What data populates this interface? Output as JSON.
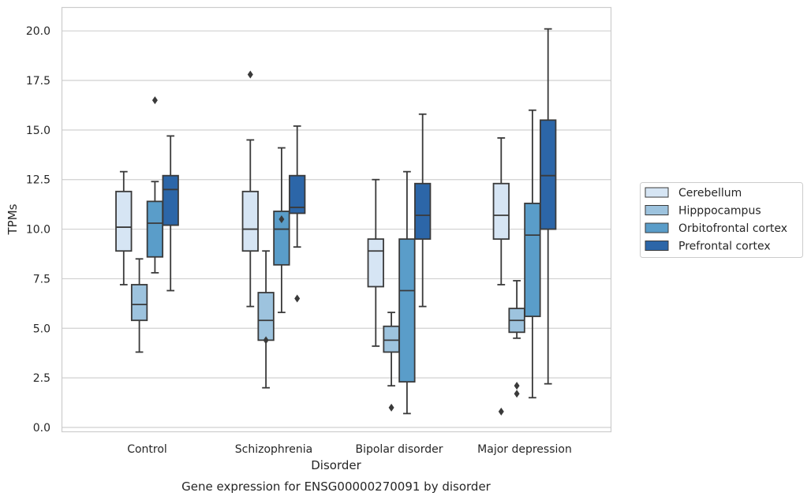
{
  "chart_data": {
    "type": "box",
    "title": "",
    "caption": "Gene expression for ENSG00000270091 by disorder",
    "xlabel": "Disorder",
    "ylabel": "TPMs",
    "ylim": [
      -0.2,
      21.2
    ],
    "yticks": [
      "0.0",
      "2.5",
      "5.0",
      "7.5",
      "10.0",
      "12.5",
      "15.0",
      "17.5",
      "20.0"
    ],
    "grid": "horizontal",
    "legend_position": "right",
    "categories": [
      "Control",
      "Schizophrenia",
      "Bipolar disorder",
      "Major depression"
    ],
    "series": [
      {
        "name": "Cerebellum",
        "color": "#d6e5f4",
        "boxes": [
          {
            "whislo": 7.2,
            "q1": 8.9,
            "med": 10.1,
            "q3": 11.9,
            "whishi": 12.9,
            "fliers": []
          },
          {
            "whislo": 6.1,
            "q1": 8.9,
            "med": 10.0,
            "q3": 11.9,
            "whishi": 14.5,
            "fliers": [
              17.8
            ]
          },
          {
            "whislo": 4.1,
            "q1": 7.1,
            "med": 8.9,
            "q3": 9.5,
            "whishi": 12.5,
            "fliers": []
          },
          {
            "whislo": 7.2,
            "q1": 9.5,
            "med": 10.7,
            "q3": 12.3,
            "whishi": 14.6,
            "fliers": [
              0.8
            ]
          }
        ]
      },
      {
        "name": "Hipppocampus",
        "color": "#9dc3de",
        "boxes": [
          {
            "whislo": 3.8,
            "q1": 5.4,
            "med": 6.2,
            "q3": 7.2,
            "whishi": 8.5,
            "fliers": []
          },
          {
            "whislo": 2.0,
            "q1": 4.4,
            "med": 5.4,
            "q3": 6.8,
            "whishi": 8.9,
            "fliers": [
              4.4
            ]
          },
          {
            "whislo": 2.1,
            "q1": 3.8,
            "med": 4.4,
            "q3": 5.1,
            "whishi": 5.8,
            "fliers": [
              1.0
            ]
          },
          {
            "whislo": 4.5,
            "q1": 4.8,
            "med": 5.4,
            "q3": 6.0,
            "whishi": 7.4,
            "fliers": [
              1.7,
              2.1
            ]
          }
        ]
      },
      {
        "name": "Orbitofrontal cortex",
        "color": "#5a9dc9",
        "boxes": [
          {
            "whislo": 7.8,
            "q1": 8.6,
            "med": 10.3,
            "q3": 11.4,
            "whishi": 12.4,
            "fliers": [
              16.5
            ]
          },
          {
            "whislo": 5.8,
            "q1": 8.2,
            "med": 10.0,
            "q3": 10.9,
            "whishi": 14.1,
            "fliers": [
              10.5
            ]
          },
          {
            "whislo": 0.7,
            "q1": 2.3,
            "med": 6.9,
            "q3": 9.5,
            "whishi": 12.9,
            "fliers": []
          },
          {
            "whislo": 1.5,
            "q1": 5.6,
            "med": 9.7,
            "q3": 11.3,
            "whishi": 16.0,
            "fliers": []
          }
        ]
      },
      {
        "name": "Prefrontal cortex",
        "color": "#2c66a8",
        "boxes": [
          {
            "whislo": 6.9,
            "q1": 10.2,
            "med": 12.0,
            "q3": 12.7,
            "whishi": 14.7,
            "fliers": []
          },
          {
            "whislo": 9.1,
            "q1": 10.8,
            "med": 11.1,
            "q3": 12.7,
            "whishi": 15.2,
            "fliers": [
              6.5
            ]
          },
          {
            "whislo": 6.1,
            "q1": 9.5,
            "med": 10.7,
            "q3": 12.3,
            "whishi": 15.8,
            "fliers": []
          },
          {
            "whislo": 2.2,
            "q1": 10.0,
            "med": 12.7,
            "q3": 15.5,
            "whishi": 20.1,
            "fliers": []
          }
        ]
      }
    ]
  }
}
